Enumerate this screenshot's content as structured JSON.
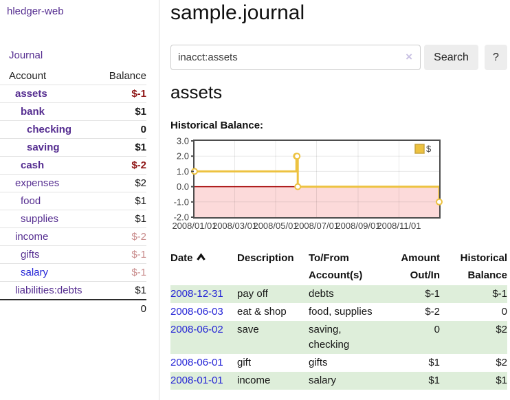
{
  "sidebar": {
    "app_link": "hledger-web",
    "journal_link": "Journal",
    "accounts": {
      "header": {
        "account": "Account",
        "balance": "Balance"
      },
      "rows": [
        {
          "account": "assets",
          "balance": "$-1",
          "level": 1,
          "bold": true,
          "negative": "strong",
          "link": "visited"
        },
        {
          "account": "bank",
          "balance": "$1",
          "level": 2,
          "bold": true,
          "negative": "none",
          "link": "visited"
        },
        {
          "account": "checking",
          "balance": "0",
          "level": 3,
          "bold": true,
          "negative": "none",
          "link": "visited"
        },
        {
          "account": "saving",
          "balance": "$1",
          "level": 3,
          "bold": true,
          "negative": "none",
          "link": "visited"
        },
        {
          "account": "cash",
          "balance": "$-2",
          "level": 2,
          "bold": true,
          "negative": "strong",
          "link": "visited"
        },
        {
          "account": "expenses",
          "balance": "$2",
          "level": 1,
          "bold": false,
          "negative": "none",
          "link": "visited"
        },
        {
          "account": "food",
          "balance": "$1",
          "level": 2,
          "bold": false,
          "negative": "none",
          "link": "visited"
        },
        {
          "account": "supplies",
          "balance": "$1",
          "level": 2,
          "bold": false,
          "negative": "none",
          "link": "visited"
        },
        {
          "account": "income",
          "balance": "$-2",
          "level": 1,
          "bold": false,
          "negative": "muted",
          "link": "visited"
        },
        {
          "account": "gifts",
          "balance": "$-1",
          "level": 2,
          "bold": false,
          "negative": "muted",
          "link": "visited"
        },
        {
          "account": "salary",
          "balance": "$-1",
          "level": 2,
          "bold": false,
          "negative": "muted",
          "link": "blue"
        },
        {
          "account": "liabilities:debts",
          "balance": "$1",
          "level": 1,
          "bold": false,
          "negative": "none",
          "link": "visited"
        }
      ],
      "total": "0"
    }
  },
  "main": {
    "journal_title": "sample.journal",
    "search": {
      "query": "inacct:assets",
      "clear_icon": "×",
      "search_button": "Search",
      "help_button": "?"
    },
    "account_title": "assets",
    "chart_heading": "Historical Balance:",
    "register": {
      "header": {
        "date": "Date",
        "description": "Description",
        "accounts": "To/From Account(s)",
        "amount": "Amount Out/In",
        "balance": "Historical Balance"
      },
      "rows": [
        {
          "date": "2008-12-31",
          "description": "pay off",
          "accounts": "debts",
          "amount": "$-1",
          "balance": "$-1",
          "amount_negative": true,
          "balance_negative": true
        },
        {
          "date": "2008-06-03",
          "description": "eat & shop",
          "accounts": "food, supplies",
          "amount": "$-2",
          "balance": "0",
          "amount_negative": true,
          "balance_negative": false
        },
        {
          "date": "2008-06-02",
          "description": "save",
          "accounts": "saving, checking",
          "amount": "0",
          "balance": "$2",
          "amount_negative": false,
          "balance_negative": false
        },
        {
          "date": "2008-06-01",
          "description": "gift",
          "accounts": "gifts",
          "amount": "$1",
          "balance": "$2",
          "amount_negative": false,
          "balance_negative": false
        },
        {
          "date": "2008-01-01",
          "description": "income",
          "accounts": "salary",
          "amount": "$1",
          "balance": "$1",
          "amount_negative": false,
          "balance_negative": false
        }
      ]
    }
  },
  "chart_data": {
    "type": "line",
    "step": true,
    "title": "Historical Balance",
    "ylim": [
      -2,
      3
    ],
    "x_range_days": [
      0,
      365
    ],
    "y_ticks": [
      "3.0",
      "2.0",
      "1.0",
      "0.0",
      "-1.0",
      "-2.0"
    ],
    "x_ticks": [
      {
        "day": 0,
        "label": "2008/01/01"
      },
      {
        "day": 60,
        "label": "2008/03/01"
      },
      {
        "day": 121,
        "label": "2008/05/01"
      },
      {
        "day": 182,
        "label": "2008/07/01"
      },
      {
        "day": 244,
        "label": "2008/09/01"
      },
      {
        "day": 305,
        "label": "2008/11/01"
      }
    ],
    "series": [
      {
        "name": "$",
        "color": "#edc240",
        "points": [
          {
            "date": "2008-01-01",
            "day": 0,
            "value": 1
          },
          {
            "date": "2008-06-01",
            "day": 152,
            "value": 2
          },
          {
            "date": "2008-06-02",
            "day": 153,
            "value": 2
          },
          {
            "date": "2008-06-03",
            "day": 154,
            "value": 0
          },
          {
            "date": "2008-12-31",
            "day": 365,
            "value": -1
          }
        ]
      }
    ],
    "negative_region": {
      "below": 0,
      "fill": "#fcdada",
      "zero_line_color": "#a40000"
    },
    "legend": {
      "position": "top-right",
      "entries": [
        {
          "label": "$",
          "color": "#edc240"
        }
      ]
    },
    "grid": {
      "on": true,
      "line_color": "rgba(0,0,0,0.09)",
      "border_color": "#4d4d4d"
    }
  },
  "colors": {
    "link_visited_purple": "#552d90",
    "link_blue": "#2323d6",
    "negative_strong": "#8f1616",
    "negative_muted": "#c98c8c",
    "negative_table": "#9c2323",
    "row_stripe_green": "#deeeda",
    "button_bg": "#ededed",
    "sidebar_border": "#dddddd",
    "chart_line_yellow": "#edc240",
    "chart_negative_fill": "#fcdada",
    "chart_zero_line": "#a40000"
  }
}
